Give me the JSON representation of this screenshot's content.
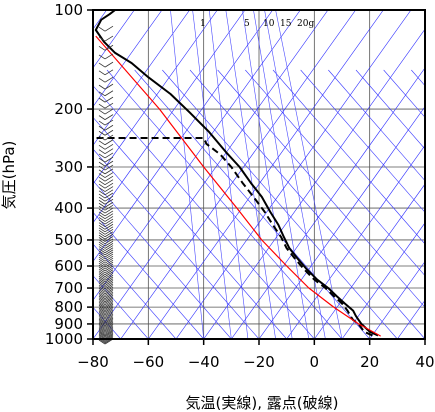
{
  "chart_data": {
    "type": "line",
    "title": "",
    "xlabel": "気温(実線), 露点(破線)",
    "ylabel": "気圧(hPa)",
    "xlim": [
      -80,
      40
    ],
    "ylim": [
      1000,
      100
    ],
    "y_scale": "log",
    "x_ticks": [
      "−80",
      "−60",
      "−40",
      "−20",
      "0",
      "20",
      "40"
    ],
    "x_tick_values": [
      -80,
      -60,
      -40,
      -20,
      0,
      20,
      40
    ],
    "y_ticks": [
      "100",
      "200",
      "300",
      "400",
      "500",
      "600",
      "700",
      "800",
      "900",
      "1000"
    ],
    "y_tick_values": [
      100,
      200,
      300,
      400,
      500,
      600,
      700,
      800,
      900,
      1000
    ],
    "grid": true,
    "mixing_ratio_labels": [
      "1",
      "5",
      "10",
      "15",
      "20g"
    ],
    "series": [
      {
        "style": "solid",
        "color": "#000000",
        "points": [
          [
            23,
            975
          ],
          [
            20,
            950
          ],
          [
            17,
            900
          ],
          [
            16,
            875
          ],
          [
            15,
            850
          ],
          [
            14,
            820
          ],
          [
            11,
            780
          ],
          [
            8,
            740
          ],
          [
            5,
            700
          ],
          [
            1,
            660
          ],
          [
            -3,
            610
          ],
          [
            -6,
            570
          ],
          [
            -9,
            530
          ],
          [
            -11,
            490
          ],
          [
            -13,
            450
          ],
          [
            -16,
            410
          ],
          [
            -19,
            370
          ],
          [
            -23,
            335
          ],
          [
            -27,
            300
          ],
          [
            -32,
            270
          ],
          [
            -38,
            235
          ],
          [
            -45,
            205
          ],
          [
            -52,
            180
          ],
          [
            -60,
            160
          ],
          [
            -66,
            145
          ],
          [
            -72,
            135
          ],
          [
            -76,
            125
          ],
          [
            -79,
            115
          ],
          [
            -77,
            107
          ],
          [
            -74,
            103
          ],
          [
            -72,
            100
          ]
        ]
      },
      {
        "style": "dashed",
        "color": "#000000",
        "points": [
          [
            21,
            975
          ],
          [
            18,
            950
          ],
          [
            16,
            900
          ],
          [
            14,
            875
          ],
          [
            13,
            850
          ],
          [
            12,
            820
          ],
          [
            10,
            780
          ],
          [
            7,
            740
          ],
          [
            4,
            700
          ],
          [
            0,
            660
          ],
          [
            -4,
            610
          ],
          [
            -7,
            570
          ],
          [
            -10,
            530
          ],
          [
            -12,
            490
          ],
          [
            -15,
            450
          ],
          [
            -18,
            410
          ],
          [
            -22,
            370
          ],
          [
            -26,
            335
          ],
          [
            -30,
            300
          ],
          [
            -34,
            275
          ],
          [
            -39,
            255
          ],
          [
            -40,
            245
          ],
          [
            -80,
            245
          ]
        ]
      },
      {
        "style": "solid",
        "color": "#ff0000",
        "points": [
          [
            24,
            980
          ],
          [
            16,
            900
          ],
          [
            7,
            800
          ],
          [
            -2,
            700
          ],
          [
            -10,
            600
          ],
          [
            -19,
            500
          ],
          [
            -28,
            400
          ],
          [
            -40,
            300
          ],
          [
            -56,
            200
          ],
          [
            -79,
            120
          ]
        ]
      }
    ]
  }
}
